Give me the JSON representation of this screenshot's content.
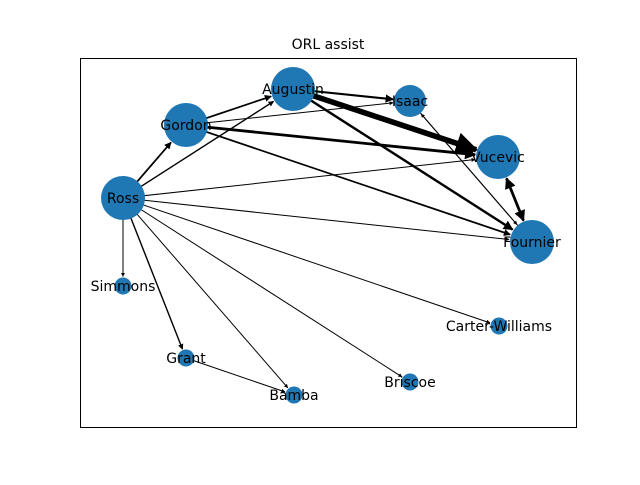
{
  "diagram": {
    "title": "ORL assist",
    "node_color": "#1f77b4",
    "edge_color": "#000000",
    "nodes": [
      {
        "id": "augustin",
        "label": "Augustin",
        "size": "large"
      },
      {
        "id": "isaac",
        "label": "Isaac",
        "size": "medium"
      },
      {
        "id": "vucevic",
        "label": "Vucevic",
        "size": "large"
      },
      {
        "id": "fournier",
        "label": "Fournier",
        "size": "large"
      },
      {
        "id": "gordon",
        "label": "Gordon",
        "size": "large"
      },
      {
        "id": "ross",
        "label": "Ross",
        "size": "large"
      },
      {
        "id": "simmons",
        "label": "Simmons",
        "size": "small"
      },
      {
        "id": "grant",
        "label": "Grant",
        "size": "small"
      },
      {
        "id": "bamba",
        "label": "Bamba",
        "size": "small"
      },
      {
        "id": "briscoe",
        "label": "Briscoe",
        "size": "small"
      },
      {
        "id": "carter-williams",
        "label": "Carter-Williams",
        "size": "small"
      }
    ],
    "edges": [
      {
        "source": "augustin",
        "target": "vucevic",
        "weight": 8
      },
      {
        "source": "gordon",
        "target": "vucevic",
        "weight": 4
      },
      {
        "source": "augustin",
        "target": "fournier",
        "weight": 3.5
      },
      {
        "source": "vucevic",
        "target": "fournier",
        "weight": 4,
        "bidirectional": true
      },
      {
        "source": "augustin",
        "target": "isaac",
        "weight": 3
      },
      {
        "source": "gordon",
        "target": "fournier",
        "weight": 2.5
      },
      {
        "source": "gordon",
        "target": "augustin",
        "weight": 2.5
      },
      {
        "source": "ross",
        "target": "gordon",
        "weight": 2.5
      },
      {
        "source": "ross",
        "target": "augustin",
        "weight": 2
      },
      {
        "source": "ross",
        "target": "grant",
        "weight": 2
      },
      {
        "source": "gordon",
        "target": "isaac",
        "weight": 1
      },
      {
        "source": "isaac",
        "target": "fournier",
        "weight": 1
      },
      {
        "source": "fournier",
        "target": "isaac",
        "weight": 1
      },
      {
        "source": "ross",
        "target": "vucevic",
        "weight": 1
      },
      {
        "source": "ross",
        "target": "fournier",
        "weight": 1
      },
      {
        "source": "ross",
        "target": "simmons",
        "weight": 1
      },
      {
        "source": "ross",
        "target": "bamba",
        "weight": 1
      },
      {
        "source": "ross",
        "target": "briscoe",
        "weight": 1
      },
      {
        "source": "ross",
        "target": "carter-williams",
        "weight": 1
      },
      {
        "source": "grant",
        "target": "bamba",
        "weight": 1
      }
    ]
  }
}
